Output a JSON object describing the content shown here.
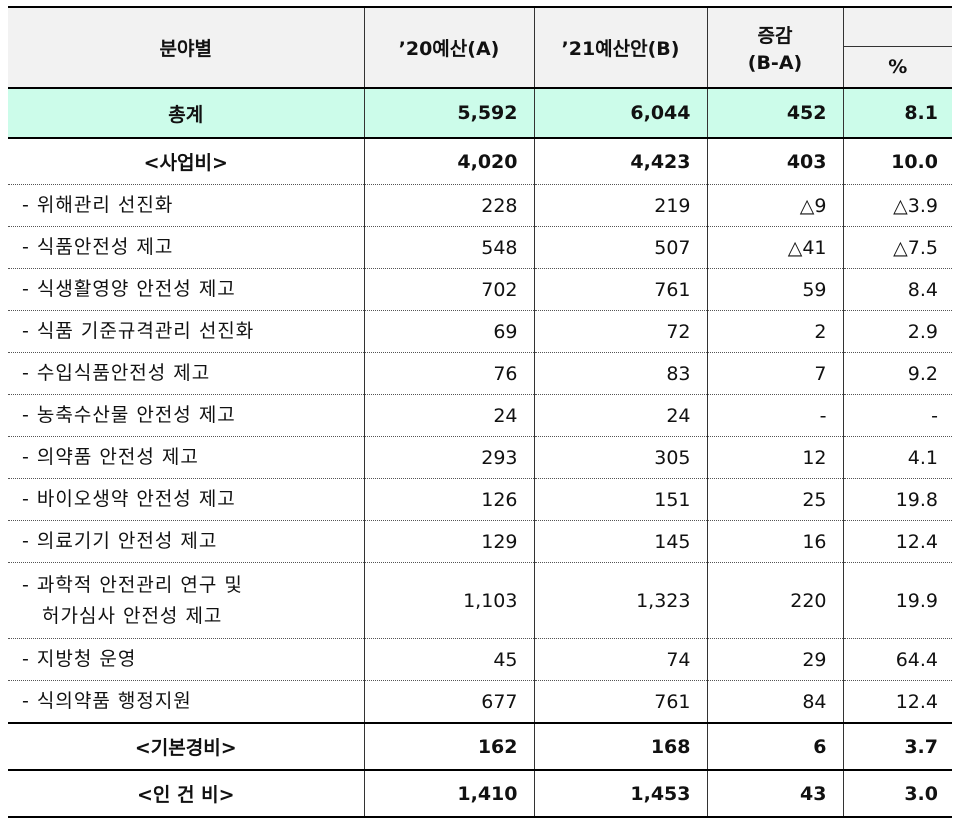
{
  "header": {
    "category": "분야별",
    "col_2020": "’20예산(A)",
    "col_2021": "’21예산안(B)",
    "change_top": "증감",
    "change_sub": "(B-A)",
    "pct": "%"
  },
  "rows": {
    "total": {
      "label": "총계",
      "a": "5,592",
      "b": "6,044",
      "diff": "452",
      "pct": "8.1"
    },
    "project": {
      "label": "<사업비>",
      "a": "4,020",
      "b": "4,423",
      "diff": "403",
      "pct": "10.0"
    },
    "r1": {
      "label": "- 위해관리 선진화",
      "a": "228",
      "b": "219",
      "diff": "△9",
      "pct": "△3.9"
    },
    "r2": {
      "label": "- 식품안전성 제고",
      "a": "548",
      "b": "507",
      "diff": "△41",
      "pct": "△7.5"
    },
    "r3": {
      "label": "- 식생활영양 안전성 제고",
      "a": "702",
      "b": "761",
      "diff": "59",
      "pct": "8.4"
    },
    "r4": {
      "label": "- 식품 기준규격관리 선진화",
      "a": "69",
      "b": "72",
      "diff": "2",
      "pct": "2.9"
    },
    "r5": {
      "label": "- 수입식품안전성 제고",
      "a": "76",
      "b": "83",
      "diff": "7",
      "pct": "9.2"
    },
    "r6": {
      "label": "- 농축수산물 안전성 제고",
      "a": "24",
      "b": "24",
      "diff": "-",
      "pct": "-"
    },
    "r7": {
      "label": "- 의약품 안전성 제고",
      "a": "293",
      "b": "305",
      "diff": "12",
      "pct": "4.1"
    },
    "r8": {
      "label": "- 바이오생약 안전성 제고",
      "a": "126",
      "b": "151",
      "diff": "25",
      "pct": "19.8"
    },
    "r9": {
      "label": "- 의료기기 안전성 제고",
      "a": "129",
      "b": "145",
      "diff": "16",
      "pct": "12.4"
    },
    "r10": {
      "label_line1": "- 과학적 안전관리 연구 및",
      "label_line2": "허가심사 안전성 제고",
      "a": "1,103",
      "b": "1,323",
      "diff": "220",
      "pct": "19.9"
    },
    "r11": {
      "label": "- 지방청 운영",
      "a": "45",
      "b": "74",
      "diff": "29",
      "pct": "64.4"
    },
    "r12": {
      "label": "- 식의약품 행정지원",
      "a": "677",
      "b": "761",
      "diff": "84",
      "pct": "12.4"
    },
    "basic": {
      "label": "<기본경비>",
      "a": "162",
      "b": "168",
      "diff": "6",
      "pct": "3.7"
    },
    "personnel": {
      "label": "<인 건 비>",
      "a": "1,410",
      "b": "1,453",
      "diff": "43",
      "pct": "3.0"
    }
  },
  "colors": {
    "header_bg": "#f2f2f2",
    "total_bg": "#ccfcea"
  }
}
